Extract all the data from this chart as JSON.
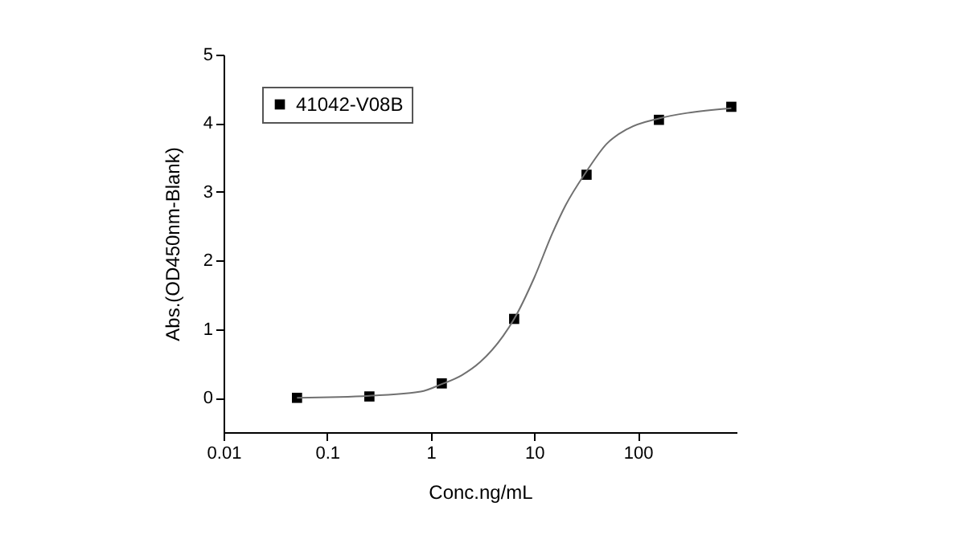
{
  "chart_data": {
    "type": "scatter",
    "xlabel": "Conc.ng/mL",
    "ylabel": "Abs.(OD450nm-Blank)",
    "log": "x",
    "xlim": [
      0.01,
      900
    ],
    "xticks": [
      0.01,
      0.1,
      1,
      10,
      100
    ],
    "ylim": [
      -0.5,
      5
    ],
    "yticks": [
      0,
      1,
      2,
      3,
      4,
      5
    ],
    "grid": false,
    "legend": "top left",
    "marker": "square",
    "series": [
      {
        "name": "41042-V08B",
        "color": "#000000",
        "x": [
          0.0512,
          0.256,
          1.28,
          6.4,
          32,
          160,
          800
        ],
        "values": [
          0.0,
          0.02,
          0.21,
          1.15,
          3.25,
          4.05,
          4.24
        ]
      },
      {
        "type": "line",
        "marker": "none",
        "color": "#707070",
        "line_style": "solid",
        "x": [
          0.0512,
          0.256,
          0.8,
          1.28,
          2,
          3,
          5,
          6.4,
          10,
          15,
          20,
          32,
          50,
          80,
          160,
          300,
          800
        ],
        "values": [
          0.0,
          0.03,
          0.09,
          0.2,
          0.33,
          0.52,
          0.9,
          1.15,
          1.75,
          2.4,
          2.8,
          3.3,
          3.7,
          3.92,
          4.07,
          4.15,
          4.22
        ]
      }
    ]
  }
}
